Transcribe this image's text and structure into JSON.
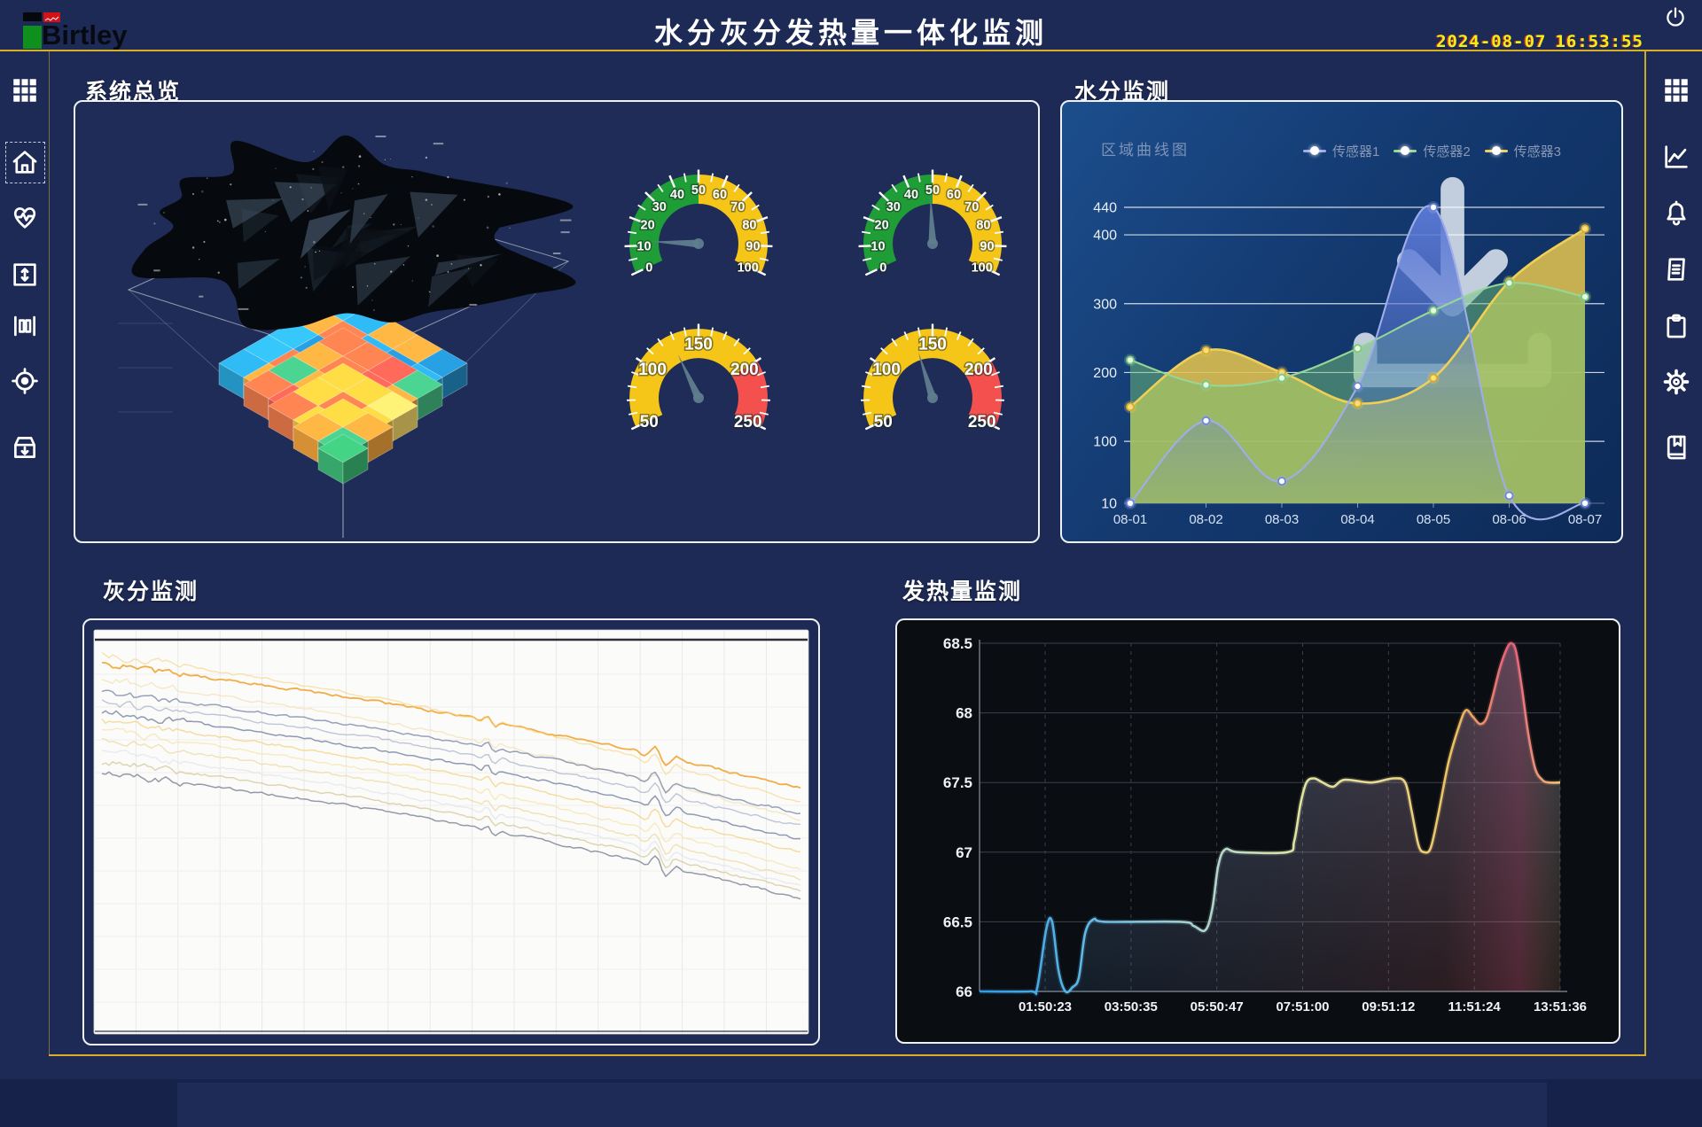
{
  "header": {
    "logo_text": "Birtley",
    "title": "水分灰分发热量一体化监测",
    "date": "2024-08-07",
    "time": "16:53:55"
  },
  "panels": {
    "overview": {
      "title": "系统总览"
    },
    "moisture": {
      "title": "水分监测",
      "chart_label": "区域曲线图"
    },
    "ash": {
      "title": "灰分监测"
    },
    "calorific": {
      "title": "发热量监测"
    }
  },
  "colors": {
    "background": "#1d2a55",
    "accent_yellow": "#d9af25",
    "panel_border": "#eef1f6",
    "clock_yellow": "#f2ef16",
    "gauge_green": "#1f9e38",
    "gauge_yellow": "#f5c518",
    "gauge_red": "#f4504e",
    "needle_gray": "#5f7d8e"
  },
  "chart_data": [
    {
      "id": "moisture-area-chart",
      "type": "area",
      "title": "区域曲线图",
      "categories": [
        "08-01",
        "08-02",
        "08-03",
        "08-04",
        "08-05",
        "08-06",
        "08-07"
      ],
      "yticks": [
        10,
        100,
        200,
        300,
        400,
        440
      ],
      "ylim": [
        10,
        440
      ],
      "grid": true,
      "legend_position": "top-right",
      "series": [
        {
          "name": "传感器1",
          "color": "#9fade8",
          "fill": "#5b79d6",
          "values": [
            10,
            130,
            42,
            180,
            440,
            21,
            10
          ]
        },
        {
          "name": "传感器2",
          "color": "#96d796",
          "fill": "#6fbf77",
          "values": [
            218,
            182,
            192,
            235,
            290,
            330,
            310
          ]
        },
        {
          "name": "传感器3",
          "color": "#f0cf57",
          "fill": "#e0c14e",
          "values": [
            150,
            232,
            200,
            155,
            192,
            332,
            409
          ]
        }
      ]
    },
    {
      "id": "overview-gauges",
      "type": "gauge",
      "items": [
        {
          "min": 0,
          "max": 100,
          "value": 12,
          "tick_step": 10,
          "minor_step": 5,
          "bands": [
            {
              "from": 0,
              "to": 50,
              "color": "#1f9e38"
            },
            {
              "from": 50,
              "to": 100,
              "color": "#f5c518"
            }
          ]
        },
        {
          "min": 0,
          "max": 100,
          "value": 49,
          "tick_step": 10,
          "minor_step": 5,
          "bands": [
            {
              "from": 0,
              "to": 50,
              "color": "#1f9e38"
            },
            {
              "from": 50,
              "to": 100,
              "color": "#f5c518"
            }
          ]
        },
        {
          "min": 50,
          "max": 250,
          "value": 128,
          "tick_step": 50,
          "minor_step": 10,
          "bands": [
            {
              "from": 50,
              "to": 200,
              "color": "#f5c518"
            },
            {
              "from": 200,
              "to": 250,
              "color": "#f4504e"
            }
          ]
        },
        {
          "min": 50,
          "max": 250,
          "value": 135,
          "tick_step": 50,
          "minor_step": 10,
          "bands": [
            {
              "from": 50,
              "to": 200,
              "color": "#f5c518"
            },
            {
              "from": 200,
              "to": 250,
              "color": "#f4504e"
            }
          ]
        }
      ]
    },
    {
      "id": "ash-multiline-chart",
      "type": "line",
      "note": "unlabeled multi-sensor ash trend, descending noisy traces",
      "series": [
        {
          "color": "#f0a93c",
          "y0": 50,
          "y1": 190,
          "width": 1.8,
          "opacity": 0.95
        },
        {
          "color": "#f6d27a",
          "y0": 38,
          "y1": 205,
          "width": 1.4,
          "opacity": 0.6
        },
        {
          "color": "#f3e0b0",
          "y0": 66,
          "y1": 225,
          "width": 1.4,
          "opacity": 0.7
        },
        {
          "color": "#8d97b4",
          "y0": 82,
          "y1": 218,
          "width": 1.5,
          "opacity": 0.9
        },
        {
          "color": "#aab3c9",
          "y0": 92,
          "y1": 232,
          "width": 1.4,
          "opacity": 0.75
        },
        {
          "color": "#7e88a6",
          "y0": 103,
          "y1": 248,
          "width": 1.5,
          "opacity": 0.85
        },
        {
          "color": "#f1c96a",
          "y0": 114,
          "y1": 262,
          "width": 1.4,
          "opacity": 0.65
        },
        {
          "color": "#f5e0a0",
          "y0": 124,
          "y1": 280,
          "width": 1.4,
          "opacity": 0.65
        },
        {
          "color": "#ead089",
          "y0": 136,
          "y1": 292,
          "width": 1.4,
          "opacity": 0.6
        },
        {
          "color": "#d9dce6",
          "y0": 148,
          "y1": 300,
          "width": 1.4,
          "opacity": 0.55
        },
        {
          "color": "#cdbd85",
          "y0": 160,
          "y1": 306,
          "width": 1.4,
          "opacity": 0.65
        },
        {
          "color": "#8a8f9e",
          "y0": 172,
          "y1": 314,
          "width": 1.5,
          "opacity": 0.9
        }
      ]
    },
    {
      "id": "calorific-line-chart",
      "type": "line",
      "x_labels": [
        "01:50:23",
        "03:50:35",
        "05:50:47",
        "07:51:00",
        "09:51:12",
        "11:51:24",
        "13:51:36"
      ],
      "yticks": [
        66,
        66.5,
        67,
        67.5,
        68,
        68.5
      ],
      "ylim": [
        66,
        68.5
      ],
      "grid": "h-solid v-dashed",
      "line_gradient": [
        "#2f9be0",
        "#5fb8e8",
        "#b8d8c8",
        "#e0e4a0",
        "#ead892",
        "#ecc05c",
        "#e85c7a",
        "#eec878"
      ],
      "points": [
        [
          0,
          66
        ],
        [
          0.087,
          66
        ],
        [
          0.099,
          66.02
        ],
        [
          0.115,
          66.45
        ],
        [
          0.125,
          66.5
        ],
        [
          0.136,
          66.15
        ],
        [
          0.148,
          66
        ],
        [
          0.16,
          66.03
        ],
        [
          0.171,
          66.1
        ],
        [
          0.182,
          66.42
        ],
        [
          0.197,
          66.52
        ],
        [
          0.217,
          66.5
        ],
        [
          0.347,
          66.5
        ],
        [
          0.369,
          66.47
        ],
        [
          0.389,
          66.44
        ],
        [
          0.401,
          66.6
        ],
        [
          0.411,
          66.9
        ],
        [
          0.423,
          67.02
        ],
        [
          0.446,
          67
        ],
        [
          0.53,
          67
        ],
        [
          0.542,
          67.08
        ],
        [
          0.553,
          67.35
        ],
        [
          0.563,
          67.5
        ],
        [
          0.576,
          67.53
        ],
        [
          0.591,
          67.5
        ],
        [
          0.609,
          67.47
        ],
        [
          0.629,
          67.52
        ],
        [
          0.675,
          67.5
        ],
        [
          0.713,
          67.53
        ],
        [
          0.733,
          67.5
        ],
        [
          0.744,
          67.3
        ],
        [
          0.756,
          67.05
        ],
        [
          0.766,
          67
        ],
        [
          0.777,
          67.03
        ],
        [
          0.789,
          67.25
        ],
        [
          0.808,
          67.65
        ],
        [
          0.827,
          67.92
        ],
        [
          0.838,
          68.02
        ],
        [
          0.85,
          67.97
        ],
        [
          0.862,
          67.92
        ],
        [
          0.873,
          67.96
        ],
        [
          0.884,
          68.12
        ],
        [
          0.896,
          68.32
        ],
        [
          0.908,
          68.46
        ],
        [
          0.916,
          68.5
        ],
        [
          0.924,
          68.44
        ],
        [
          0.934,
          68.18
        ],
        [
          0.945,
          67.85
        ],
        [
          0.957,
          67.6
        ],
        [
          0.969,
          67.52
        ],
        [
          0.98,
          67.5
        ],
        [
          1,
          67.5
        ]
      ]
    }
  ],
  "decor": {
    "coal_color": "#06090d",
    "voxel_levels": [
      [
        "#2aa7dc",
        "#2390cb",
        "#e8784a",
        "#e85f50",
        "#30b3e0",
        "#f2a43c",
        "#2aa7dc"
      ],
      [
        "#e8784a",
        "#f2c53d",
        "#2aa7dc",
        "#e85f50",
        "#f2a43c",
        "#43bd82"
      ],
      [
        "#f2c53d",
        "#2390cb",
        "#e8784a",
        "#f7d96a"
      ],
      [
        "#f2c53d",
        "#43bd82",
        "#f2a43c"
      ],
      [
        "#3dbd78"
      ]
    ]
  }
}
